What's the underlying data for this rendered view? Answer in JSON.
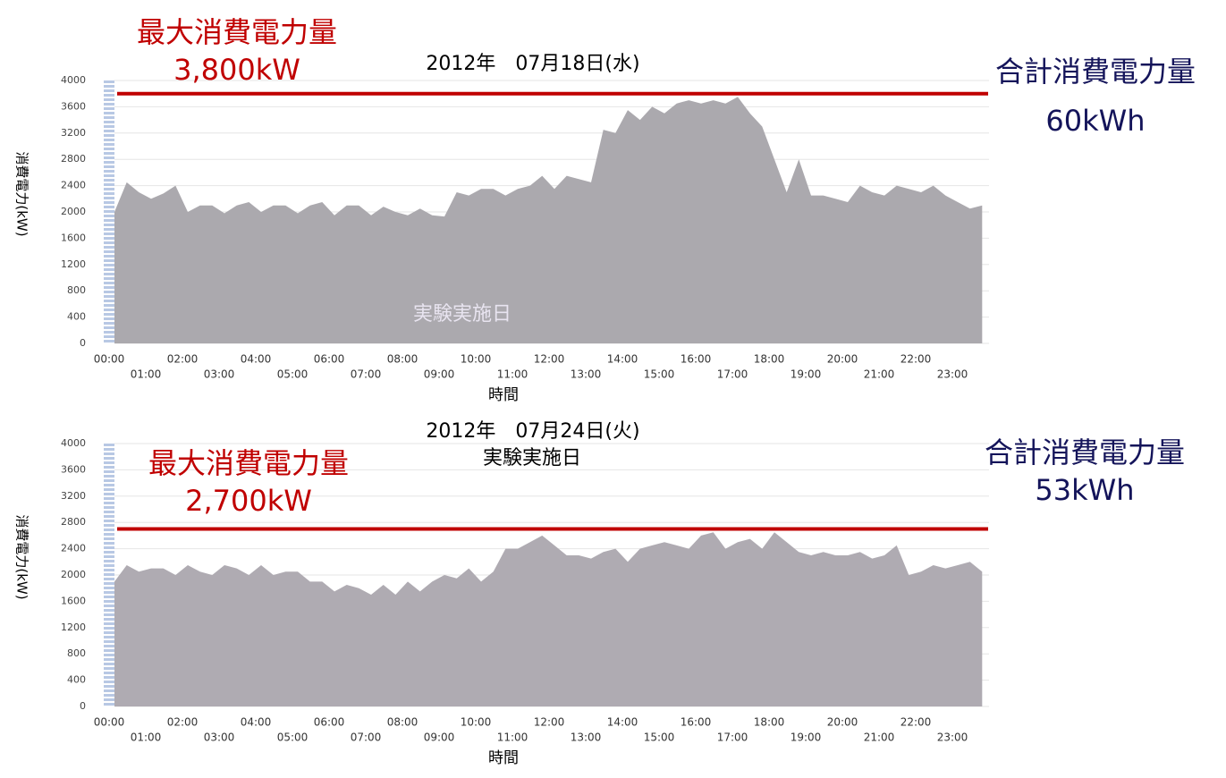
{
  "chart_data": [
    {
      "type": "area",
      "title": "2012年　07月18日(水)",
      "x_label": "時間",
      "y_label": "消費電力(kW)",
      "annotation": "実験実施日",
      "peak": {
        "title": "最大消費電力量",
        "value": 3800,
        "label": "3,800kW",
        "color": "#c00000"
      },
      "total": {
        "title": "合計消費電力量",
        "label": "60kWh",
        "color": "#14145a"
      },
      "color": "#aba9ae",
      "grid": true,
      "ylim": [
        0,
        4000
      ],
      "yticks": [
        0,
        400,
        800,
        1200,
        1600,
        2000,
        2400,
        2800,
        3200,
        3600,
        4000
      ],
      "categories": [
        "00:00",
        null,
        null,
        "01:00",
        null,
        null,
        "02:00",
        null,
        null,
        "03:00",
        null,
        null,
        "04:00",
        null,
        null,
        "05:00",
        null,
        null,
        "06:00",
        null,
        null,
        "07:00",
        null,
        null,
        "08:00",
        null,
        null,
        "09:00",
        null,
        null,
        "10:00",
        null,
        null,
        "11:00",
        null,
        null,
        "12:00",
        null,
        null,
        "13:00",
        null,
        null,
        "14:00",
        null,
        null,
        "15:00",
        null,
        null,
        "16:00",
        null,
        null,
        "17:00",
        null,
        null,
        "18:00",
        null,
        null,
        "19:00",
        null,
        null,
        "20:00",
        null,
        null,
        "21:00",
        null,
        null,
        "22:00",
        null,
        null,
        "23:00",
        null,
        null
      ],
      "values": [
        2000,
        2450,
        2300,
        2200,
        2280,
        2400,
        2000,
        2100,
        2100,
        1980,
        2100,
        2150,
        2000,
        2100,
        2100,
        1980,
        2100,
        2150,
        1950,
        2100,
        2100,
        1950,
        2080,
        2000,
        1950,
        2050,
        1950,
        1930,
        2300,
        2250,
        2350,
        2350,
        2250,
        2350,
        2400,
        2550,
        2350,
        2550,
        2500,
        2450,
        3250,
        3200,
        3550,
        3400,
        3600,
        3500,
        3650,
        3700,
        3650,
        3700,
        3650,
        3750,
        3500,
        3300,
        2800,
        2300,
        2800,
        2250,
        2250,
        2200,
        2150,
        2400,
        2300,
        2250,
        2400,
        2350,
        2300,
        2400,
        2250,
        2150,
        2050,
        2100
      ]
    },
    {
      "type": "area",
      "title": "2012年　07月24日(火)",
      "x_label": "時間",
      "y_label": "消費電力(kW)",
      "annotation": "実験実施日",
      "peak": {
        "title": "最大消費電力量",
        "value": 2700,
        "label": "2,700kW",
        "color": "#c00000"
      },
      "total": {
        "title": "合計消費電力量",
        "label": "53kWh",
        "color": "#14145a"
      },
      "color": "#afabb2",
      "grid": true,
      "ylim": [
        0,
        4000
      ],
      "yticks": [
        0,
        400,
        800,
        1200,
        1600,
        2000,
        2400,
        2800,
        3200,
        3600,
        4000
      ],
      "categories": [
        "00:00",
        null,
        null,
        "01:00",
        null,
        null,
        "02:00",
        null,
        null,
        "03:00",
        null,
        null,
        "04:00",
        null,
        null,
        "05:00",
        null,
        null,
        "06:00",
        null,
        null,
        "07:00",
        null,
        null,
        "08:00",
        null,
        null,
        "09:00",
        null,
        null,
        "10:00",
        null,
        null,
        "11:00",
        null,
        null,
        "12:00",
        null,
        null,
        "13:00",
        null,
        null,
        "14:00",
        null,
        null,
        "15:00",
        null,
        null,
        "16:00",
        null,
        null,
        "17:00",
        null,
        null,
        "18:00",
        null,
        null,
        "19:00",
        null,
        null,
        "20:00",
        null,
        null,
        "21:00",
        null,
        null,
        "22:00",
        null,
        null,
        "23:00",
        null,
        null
      ],
      "values": [
        1900,
        2150,
        2050,
        2100,
        2100,
        2000,
        2150,
        2050,
        2000,
        2150,
        2100,
        2000,
        2150,
        2000,
        2050,
        2050,
        1900,
        1900,
        1750,
        1850,
        1800,
        1700,
        1850,
        1700,
        1900,
        1750,
        1900,
        2000,
        1950,
        2100,
        1900,
        2050,
        2400,
        2400,
        2500,
        2600,
        2450,
        2300,
        2300,
        2250,
        2350,
        2400,
        2200,
        2400,
        2450,
        2500,
        2450,
        2400,
        2600,
        2650,
        2400,
        2500,
        2550,
        2400,
        2650,
        2500,
        2350,
        2300,
        2350,
        2300,
        2300,
        2350,
        2250,
        2300,
        2450,
        2000,
        2050,
        2150,
        2100,
        2150,
        2200,
        2050
      ]
    }
  ]
}
